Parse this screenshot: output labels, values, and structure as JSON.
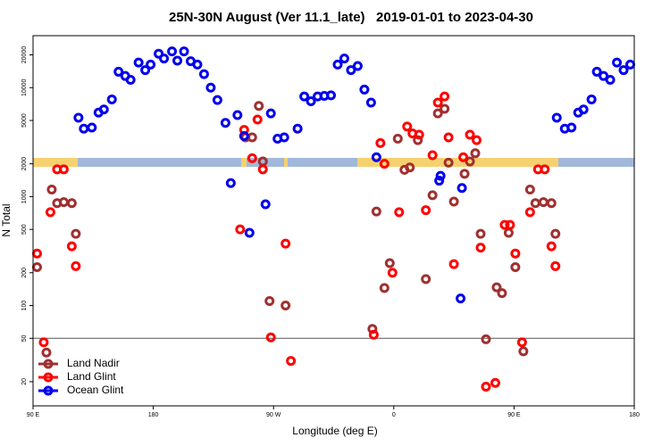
{
  "chart_data": {
    "type": "scatter",
    "title": "25N-30N August (Ver 11.1_late)   2019-01-01 to 2023-04-30",
    "x_label": "Longitude (deg E)",
    "y_label": "N Total",
    "xlim": [
      90,
      540
    ],
    "xticks": [
      {
        "value": 90,
        "label": "90 E"
      },
      180,
      {
        "value": 270,
        "label": "90 W"
      },
      {
        "value": 360,
        "label": "0"
      },
      {
        "value": 450,
        "label": "90 E"
      },
      {
        "value": 540,
        "label": "180"
      }
    ],
    "ylim": [
      12,
      30000
    ],
    "y_log": true,
    "yticks": [
      20,
      50,
      100,
      200,
      500,
      1000,
      2000,
      5000,
      10000,
      20000
    ],
    "reference_line": 50,
    "legend": "bottom-left",
    "series": [
      {
        "name": "Land Nadir",
        "color": "#a03030",
        "x": [
          93,
          100,
          104,
          108,
          113,
          119,
          122,
          249,
          254,
          259,
          262,
          267,
          279,
          344,
          347,
          353,
          357,
          363,
          368,
          372,
          378,
          384,
          389,
          393,
          398,
          401,
          405,
          413,
          417,
          421,
          425,
          429,
          437,
          441,
          446,
          451,
          457,
          462,
          466,
          472,
          478,
          481
        ],
        "values": [
          225,
          37,
          1160,
          870,
          890,
          870,
          455,
          3500,
          3500,
          6800,
          2100,
          110,
          100,
          61,
          730,
          145,
          245,
          3400,
          1760,
          1850,
          3300,
          175,
          1030,
          5800,
          6400,
          2050,
          900,
          1620,
          2100,
          2500,
          455,
          49,
          147,
          130,
          465,
          225,
          38,
          1160,
          870,
          890,
          870,
          455
        ]
      },
      {
        "name": "Land Glint",
        "color": "#ff0000",
        "x": [
          93,
          98,
          103,
          108,
          113,
          119,
          122,
          245,
          248,
          254,
          258,
          262,
          268,
          279,
          283,
          345,
          350,
          353,
          359,
          364,
          370,
          374,
          379,
          384,
          389,
          393,
          398,
          401,
          405,
          412,
          417,
          422,
          425,
          429,
          436,
          443,
          447,
          451,
          456,
          462,
          468,
          473,
          478,
          481
        ],
        "values": [
          300,
          46,
          720,
          1780,
          1780,
          350,
          230,
          500,
          4100,
          2250,
          5100,
          1780,
          51,
          370,
          31,
          54,
          3100,
          2000,
          200,
          720,
          4400,
          3800,
          3700,
          750,
          2400,
          7300,
          8300,
          3500,
          240,
          2300,
          3700,
          3300,
          340,
          18,
          19.5,
          550,
          550,
          300,
          46,
          720,
          1780,
          1780,
          350,
          230
        ]
      },
      {
        "name": "Ocean Glint",
        "color": "#0000ee",
        "x": [
          124,
          128,
          134,
          139,
          143,
          149,
          154,
          159,
          163,
          169,
          174,
          178,
          184,
          188,
          194,
          198,
          203,
          208,
          213,
          218,
          223,
          228,
          234,
          238,
          243,
          248,
          252,
          264,
          268,
          273,
          278,
          288,
          293,
          298,
          303,
          308,
          313,
          318,
          323,
          328,
          333,
          338,
          343,
          347,
          394,
          395,
          410,
          411,
          482,
          488,
          493,
          498,
          502,
          508,
          512,
          517,
          522,
          527,
          532,
          537
        ],
        "values": [
          5300,
          4200,
          4300,
          5900,
          6300,
          7800,
          14000,
          12800,
          11800,
          17000,
          14500,
          16300,
          20500,
          18500,
          21500,
          17700,
          21500,
          17500,
          16300,
          13300,
          10000,
          7700,
          4750,
          1330,
          5600,
          3600,
          465,
          850,
          5800,
          3400,
          3500,
          4200,
          8300,
          7500,
          8300,
          8400,
          8500,
          16300,
          18500,
          14500,
          15800,
          9600,
          7300,
          2300,
          1400,
          1550,
          116,
          1200,
          5300,
          4200,
          4300,
          5900,
          6300,
          7800,
          14000,
          12800,
          11800,
          17000,
          14500,
          16300
        ]
      }
    ]
  }
}
